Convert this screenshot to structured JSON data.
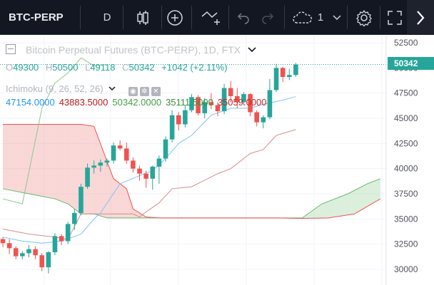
{
  "toolbar": {
    "symbol": "BTC-PERP",
    "interval": "D",
    "layout_count": "1"
  },
  "legend": {
    "title": "Bitcoin Perpetual Futures (BTC-PERP), 1D, FTX",
    "ohlc": {
      "o_label": "O",
      "o": "49300",
      "h_label": "H",
      "h": "50500",
      "l_label": "L",
      "l": "49118",
      "c_label": "C",
      "c": "50342",
      "change": "+1042 (+2.11%)"
    }
  },
  "indicator": {
    "name": "Ichimoku (9, 26, 52, 26)",
    "values": [
      {
        "text": "47154.0000",
        "color": "#2196f3"
      },
      {
        "text": "43883.5000",
        "color": "#b71c1c"
      },
      {
        "text": "50342.0000",
        "color": "#43a047"
      },
      {
        "text": "35111.5000",
        "color": "#388e3c"
      },
      {
        "text": "35059.0000",
        "color": "#c62828"
      }
    ]
  },
  "last_price": "50342",
  "chart_data": {
    "type": "candlestick",
    "title": "Bitcoin Perpetual Futures (BTC-PERP), 1D, FTX",
    "y_ticks": [
      52500,
      50000,
      47500,
      45000,
      42500,
      40000,
      37500,
      35000,
      32500,
      30000
    ],
    "ylim": [
      29000,
      53500
    ],
    "colors": {
      "up": "#26a69a",
      "down": "#ef5350",
      "tenkan": "#2196f3",
      "kijun": "#b71c1c",
      "chikou": "#43a047",
      "cloud_bull": "#a5d6a7",
      "cloud_bear": "#ef9a9a"
    },
    "candles": [
      [
        33000,
        33200,
        32200,
        32600
      ],
      [
        32600,
        33000,
        31500,
        32100
      ],
      [
        32100,
        32300,
        31000,
        31300
      ],
      [
        31300,
        31800,
        31000,
        31600
      ],
      [
        31600,
        32400,
        31200,
        32000
      ],
      [
        32000,
        32300,
        31000,
        31400
      ],
      [
        31400,
        31600,
        29800,
        30200
      ],
      [
        30200,
        31800,
        29600,
        31700
      ],
      [
        31700,
        33600,
        31400,
        33300
      ],
      [
        33300,
        33500,
        32400,
        32800
      ],
      [
        32800,
        34700,
        32500,
        34500
      ],
      [
        34500,
        36000,
        33900,
        35600
      ],
      [
        35600,
        38500,
        35400,
        38200
      ],
      [
        38200,
        40500,
        38000,
        40100
      ],
      [
        40100,
        40800,
        39500,
        40300
      ],
      [
        40300,
        40900,
        39700,
        40600
      ],
      [
        40600,
        41000,
        40200,
        40800
      ],
      [
        40800,
        42600,
        40500,
        42300
      ],
      [
        42300,
        42800,
        41800,
        42000
      ],
      [
        42000,
        42600,
        40500,
        40800
      ],
      [
        40800,
        41100,
        39600,
        40000
      ],
      [
        40000,
        40300,
        38800,
        39500
      ],
      [
        39500,
        39800,
        38100,
        39000
      ],
      [
        39000,
        40300,
        37900,
        40200
      ],
      [
        40200,
        41300,
        38500,
        41000
      ],
      [
        41000,
        43200,
        40700,
        42900
      ],
      [
        42900,
        45800,
        42600,
        45300
      ],
      [
        45300,
        45600,
        43800,
        44400
      ],
      [
        44400,
        46300,
        44100,
        45800
      ],
      [
        45800,
        47400,
        45600,
        47100
      ],
      [
        47100,
        47300,
        45300,
        45500
      ],
      [
        45500,
        47000,
        45000,
        46600
      ],
      [
        46600,
        47500,
        45900,
        46300
      ],
      [
        46300,
        46600,
        45200,
        45700
      ],
      [
        45700,
        48400,
        45400,
        48000
      ],
      [
        48000,
        48700,
        46600,
        47200
      ],
      [
        47200,
        48000,
        46000,
        46600
      ],
      [
        46600,
        47600,
        46300,
        47400
      ],
      [
        47400,
        47500,
        45200,
        45600
      ],
      [
        45600,
        45800,
        44200,
        44600
      ],
      [
        44600,
        45300,
        44000,
        45100
      ],
      [
        45100,
        48900,
        44900,
        47800
      ],
      [
        47800,
        50400,
        47600,
        50000
      ],
      [
        50000,
        50100,
        48600,
        49100
      ],
      [
        49100,
        49900,
        48800,
        49300
      ],
      [
        49300,
        50500,
        49118,
        50342
      ]
    ],
    "tenkan": [
      [
        0,
        33200
      ],
      [
        3,
        32800
      ],
      [
        6,
        32600
      ],
      [
        9,
        32800
      ],
      [
        12,
        33500
      ],
      [
        14,
        35000
      ],
      [
        15,
        35600
      ],
      [
        18,
        38500
      ],
      [
        21,
        39300
      ],
      [
        23,
        39800
      ],
      [
        25,
        41000
      ],
      [
        27,
        42500
      ],
      [
        29,
        43300
      ],
      [
        32,
        45300
      ],
      [
        35,
        46000
      ],
      [
        38,
        46000
      ],
      [
        40,
        46400
      ],
      [
        43,
        46800
      ],
      [
        45,
        47154
      ]
    ],
    "kijun": [
      [
        0,
        34000
      ],
      [
        4,
        33500
      ],
      [
        8,
        33200
      ],
      [
        10,
        33000
      ],
      [
        12,
        35500
      ],
      [
        15,
        35500
      ],
      [
        20,
        35500
      ],
      [
        21,
        35200
      ],
      [
        22,
        35700
      ],
      [
        24,
        36600
      ],
      [
        26,
        38000
      ],
      [
        29,
        38200
      ],
      [
        33,
        39500
      ],
      [
        35,
        40000
      ],
      [
        38,
        41500
      ],
      [
        40,
        41900
      ],
      [
        42,
        43300
      ],
      [
        45,
        43883.5
      ]
    ],
    "chikou": [
      [
        0,
        37000
      ],
      [
        3,
        36500
      ],
      [
        6,
        46000
      ],
      [
        8,
        48500
      ],
      [
        10,
        49500
      ],
      [
        12,
        51000
      ],
      [
        14,
        50200
      ],
      [
        16,
        50342
      ]
    ],
    "span_a": [
      [
        0,
        38000
      ],
      [
        4,
        37500
      ],
      [
        8,
        37000
      ],
      [
        10,
        36500
      ],
      [
        12,
        35500
      ],
      [
        14,
        35500
      ],
      [
        16,
        35100
      ],
      [
        20,
        35100
      ],
      [
        26,
        35100
      ],
      [
        32,
        35100
      ],
      [
        38,
        35100
      ],
      [
        44,
        35100
      ],
      [
        46,
        35111.5
      ],
      [
        49,
        36500
      ],
      [
        53,
        37500
      ],
      [
        56,
        38500
      ],
      [
        58,
        39000
      ]
    ],
    "span_b": [
      [
        0,
        44400
      ],
      [
        6,
        44400
      ],
      [
        10,
        44400
      ],
      [
        12,
        44400
      ],
      [
        14,
        44200
      ],
      [
        17,
        39000
      ],
      [
        19,
        38000
      ],
      [
        20,
        36000
      ],
      [
        22,
        35200
      ],
      [
        24,
        35100
      ],
      [
        30,
        35100
      ],
      [
        36,
        35100
      ],
      [
        42,
        35100
      ],
      [
        46,
        35059
      ],
      [
        50,
        35100
      ],
      [
        54,
        35500
      ],
      [
        58,
        37000
      ]
    ]
  }
}
